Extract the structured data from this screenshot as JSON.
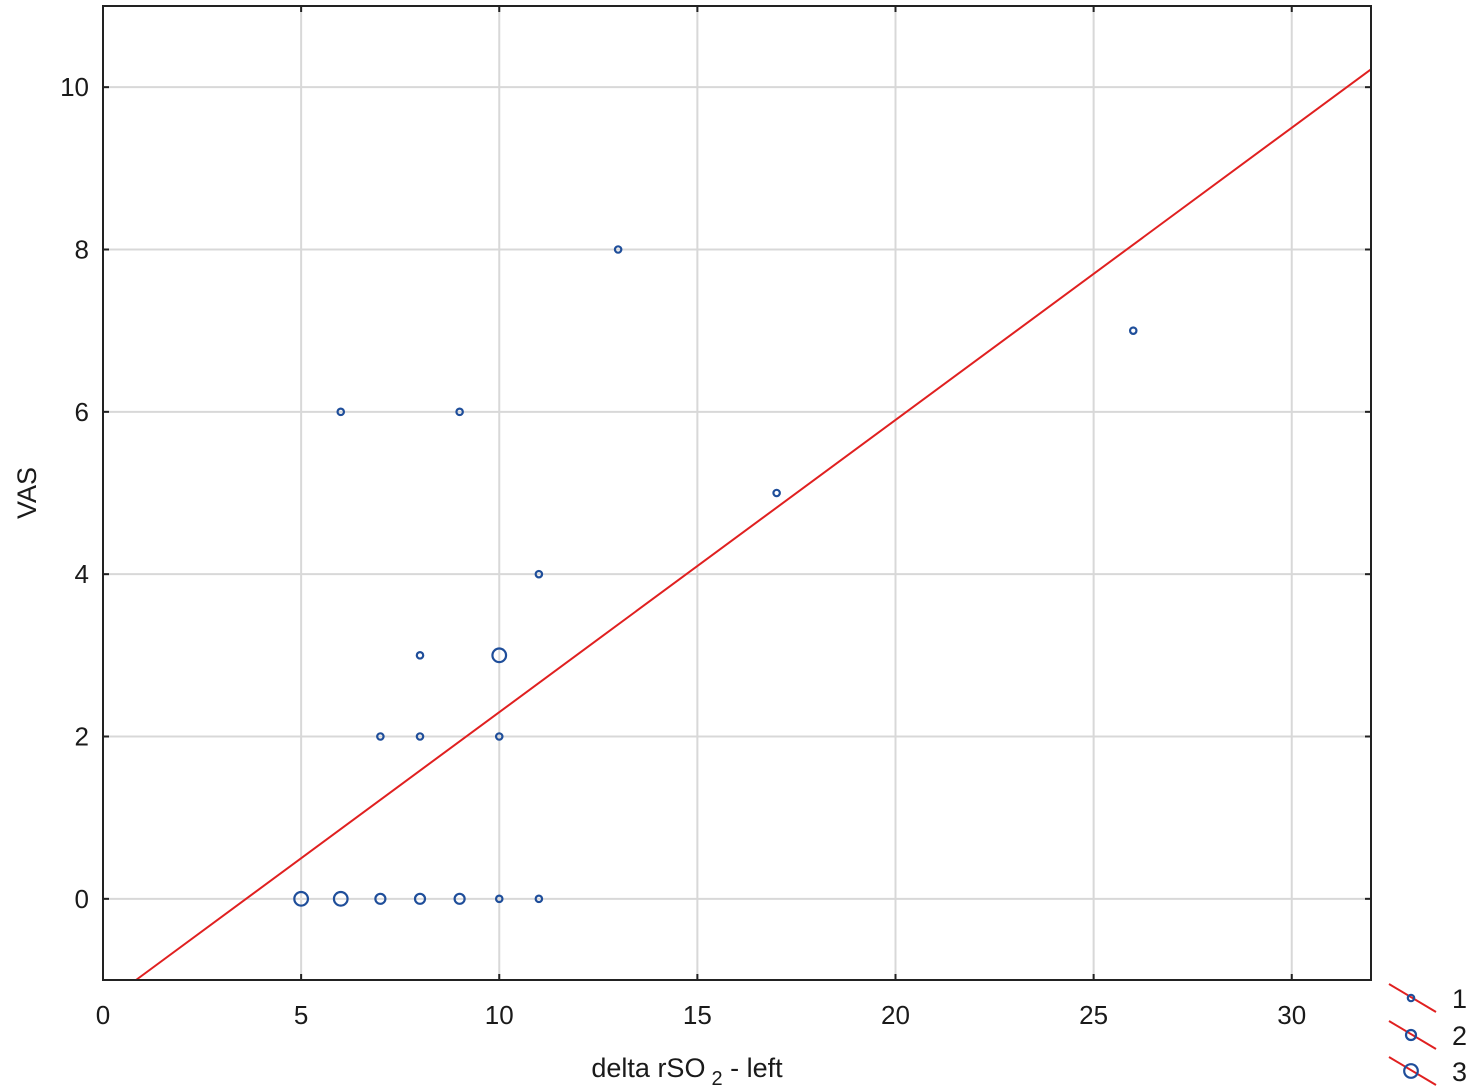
{
  "chart_data": {
    "type": "scatter",
    "title": "",
    "xlabel": "delta rSO 2 - left",
    "xlabel_parts": {
      "main": "delta rSO",
      "sub": "2",
      "tail": " - left"
    },
    "ylabel": "VAS",
    "xlim": [
      0,
      32
    ],
    "ylim": [
      -1,
      11
    ],
    "xticks": [
      0,
      5,
      10,
      15,
      20,
      25,
      30
    ],
    "yticks": [
      0,
      2,
      4,
      6,
      8,
      10
    ],
    "grid": true,
    "points": [
      {
        "x": 5,
        "y": 0,
        "n": 3
      },
      {
        "x": 6,
        "y": 0,
        "n": 3
      },
      {
        "x": 7,
        "y": 0,
        "n": 2
      },
      {
        "x": 8,
        "y": 0,
        "n": 2
      },
      {
        "x": 9,
        "y": 0,
        "n": 2
      },
      {
        "x": 10,
        "y": 0,
        "n": 1
      },
      {
        "x": 11,
        "y": 0,
        "n": 1
      },
      {
        "x": 7,
        "y": 2,
        "n": 1
      },
      {
        "x": 8,
        "y": 2,
        "n": 1
      },
      {
        "x": 10,
        "y": 2,
        "n": 1
      },
      {
        "x": 8,
        "y": 3,
        "n": 1
      },
      {
        "x": 10,
        "y": 3,
        "n": 3
      },
      {
        "x": 11,
        "y": 4,
        "n": 1
      },
      {
        "x": 6,
        "y": 6,
        "n": 1
      },
      {
        "x": 9,
        "y": 6,
        "n": 1
      },
      {
        "x": 17,
        "y": 5,
        "n": 1
      },
      {
        "x": 13,
        "y": 8,
        "n": 1
      },
      {
        "x": 26,
        "y": 7,
        "n": 1
      }
    ],
    "fit_line": {
      "slope": 0.36,
      "intercept": -1.3
    },
    "legend": {
      "placement": "bottom-right",
      "entries": [
        {
          "label": "1",
          "n": 1
        },
        {
          "label": "2",
          "n": 2
        },
        {
          "label": "3",
          "n": 3
        }
      ]
    },
    "colors": {
      "marker": "#1f4e9a",
      "fit_line": "#e02020",
      "grid": "#d8d8d8",
      "frame": "#222222"
    }
  }
}
